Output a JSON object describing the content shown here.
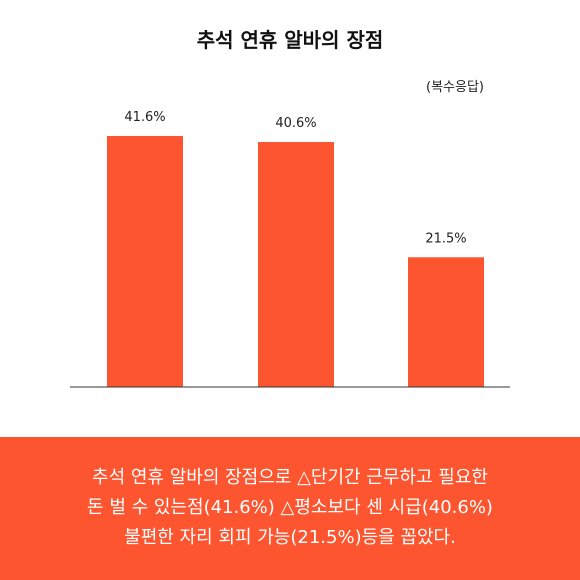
{
  "title": "추석 연휴 알바의 장점",
  "note": "(복수응답)",
  "colors": {
    "bar": "#fc5530",
    "axis": "#333333",
    "caption_bg": "#fc5530",
    "caption_text": "#ffffff"
  },
  "chart_data": {
    "type": "bar",
    "categories": [
      "",
      "",
      ""
    ],
    "values": [
      41.6,
      40.6,
      21.5
    ],
    "data_labels": [
      "41.6%",
      "40.6%",
      "21.5%"
    ],
    "title": "추석 연휴 알바의 장점",
    "xlabel": "",
    "ylabel": "",
    "ylim": [
      0,
      50
    ],
    "grid": false,
    "legend": "none"
  },
  "caption": {
    "line1": "추석 연휴 알바의 장점으로 △단기간 근무하고 필요한",
    "line2": "돈 벌 수 있는점(41.6%) △평소보다 센 시급(40.6%)",
    "line3": "불편한 자리 회피 가능(21.5%)등을 꼽았다."
  }
}
